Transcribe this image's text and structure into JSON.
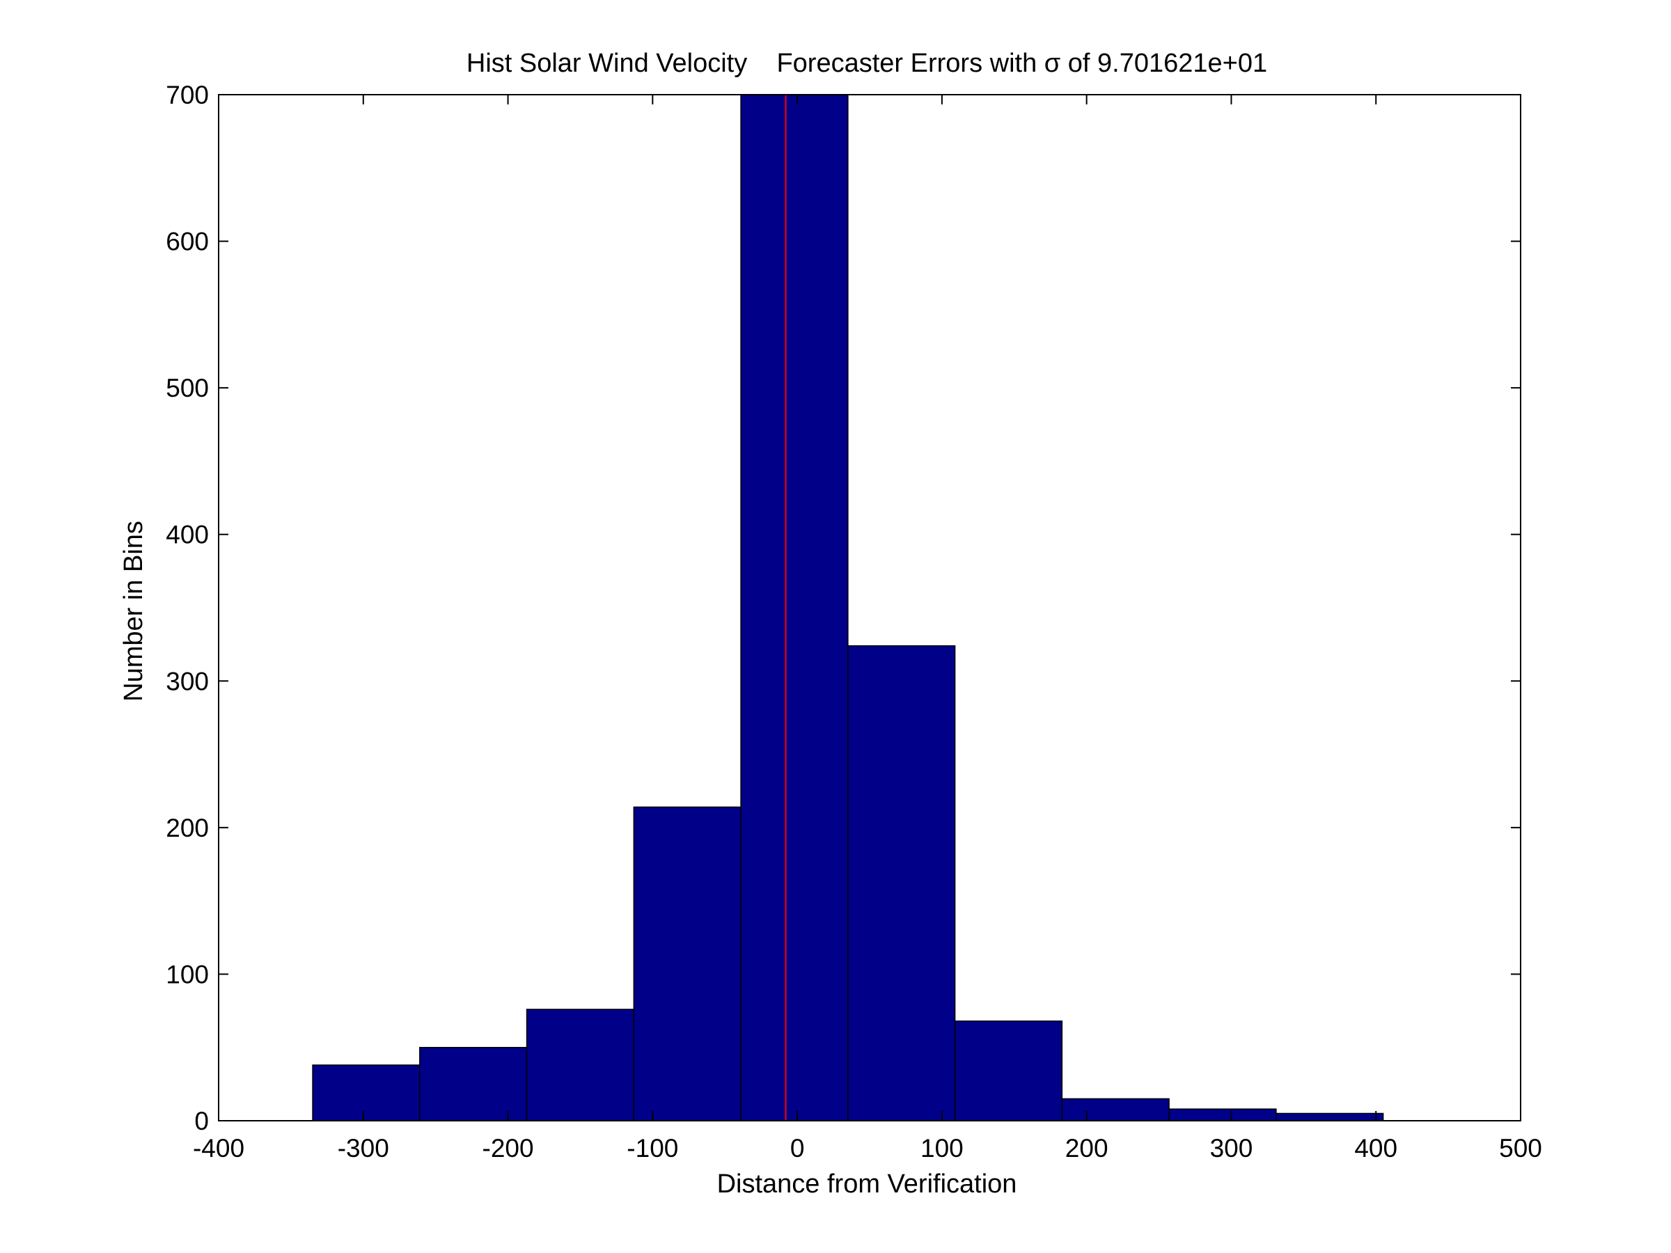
{
  "chart_data": {
    "type": "bar",
    "title": "Hist Solar Wind Velocity    Forecaster Errors with σ of 9.701621e+01",
    "xlabel": "Distance from Verification",
    "ylabel": "Number in Bins",
    "xlim": [
      -400,
      500
    ],
    "ylim": [
      0,
      700
    ],
    "xticks": [
      -400,
      -300,
      -200,
      -100,
      0,
      100,
      200,
      300,
      400,
      500
    ],
    "yticks": [
      0,
      100,
      200,
      300,
      400,
      500,
      600,
      700
    ],
    "grid": false,
    "legend": "none",
    "bins": [
      {
        "from": -335.0,
        "to": -261.0,
        "count": 38
      },
      {
        "from": -261.0,
        "to": -187.0,
        "count": 50
      },
      {
        "from": -187.0,
        "to": -113.0,
        "count": 76
      },
      {
        "from": -113.0,
        "to": -39.0,
        "count": 214
      },
      {
        "from": -39.0,
        "to": 35.0,
        "count": 700
      },
      {
        "from": 35.0,
        "to": 109.0,
        "count": 324
      },
      {
        "from": 109.0,
        "to": 183.0,
        "count": 68
      },
      {
        "from": 183.0,
        "to": 257.0,
        "count": 15
      },
      {
        "from": 257.0,
        "to": 331.0,
        "count": 8
      },
      {
        "from": 331.0,
        "to": 405.0,
        "count": 5
      }
    ],
    "reference_line_x": -8,
    "bar_color": "#000088",
    "bar_edge_color": "#000000",
    "reference_line_color": "#ff0000"
  }
}
